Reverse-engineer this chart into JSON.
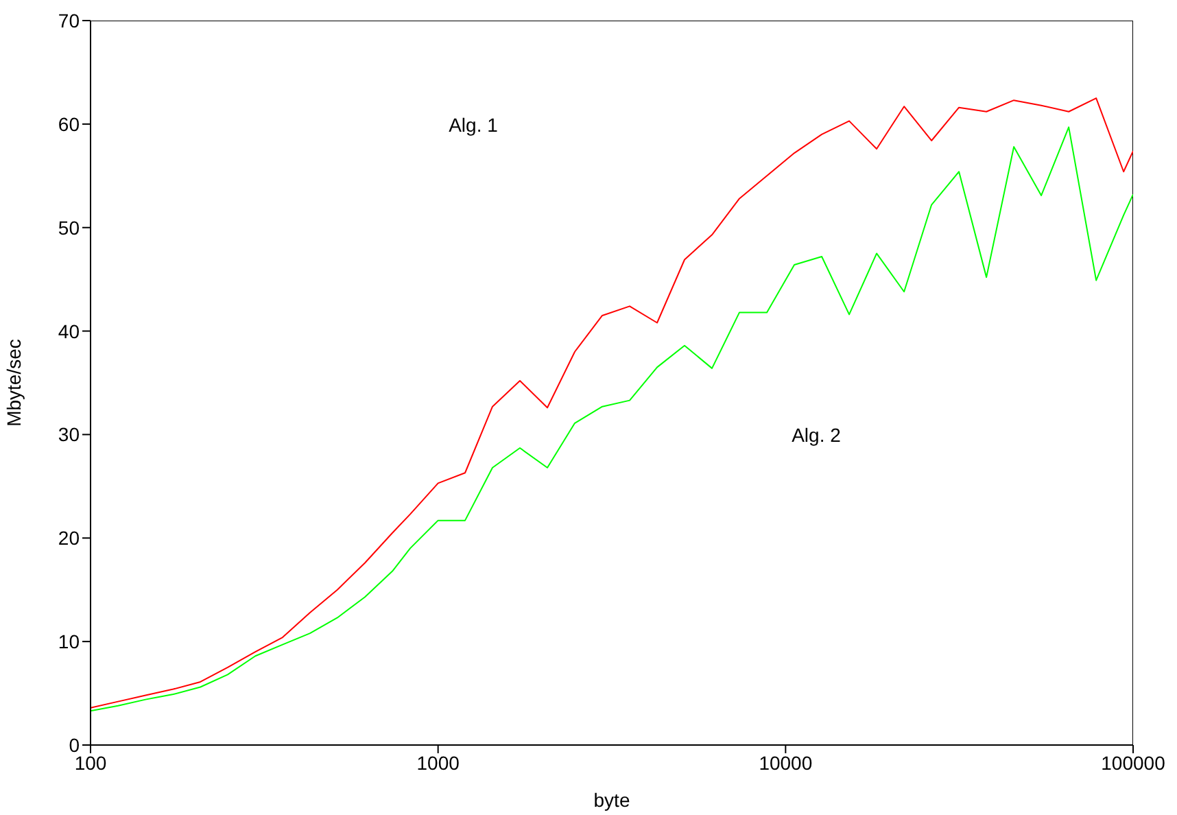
{
  "chart_data": {
    "type": "line",
    "xlabel": "byte",
    "ylabel": "Mbyte/sec",
    "log": "x",
    "grid": false,
    "legend": false,
    "marker": "none",
    "line_style": "solid",
    "annotations": [
      "Alg. 1",
      "Alg. 2"
    ],
    "x": [
      100,
      120,
      144,
      173,
      207,
      248,
      298,
      357,
      428,
      513,
      616,
      739,
      831,
      1000,
      1196,
      1434,
      1720,
      2063,
      2474,
      2968,
      3559,
      4269,
      5120,
      6141,
      7365,
      8834,
      10596,
      12709,
      15242,
      18282,
      21928,
      26300,
      31544,
      37834,
      45378,
      54426,
      65279,
      78295,
      93907,
      100000
    ],
    "xlim": [
      100,
      100000
    ],
    "xticks": [
      100,
      1000,
      10000,
      100000
    ],
    "ylim": [
      0,
      70
    ],
    "yticks": [
      0,
      10,
      20,
      30,
      40,
      50,
      60,
      70
    ],
    "series": [
      {
        "color": "#ff0000",
        "values": [
          3.6,
          4.2,
          4.8,
          5.4,
          6.1,
          7.5,
          9.0,
          10.4,
          12.8,
          15.0,
          17.6,
          20.5,
          22.3,
          25.3,
          26.3,
          32.7,
          35.2,
          32.6,
          38.0,
          41.5,
          42.4,
          40.8,
          46.9,
          49.3,
          52.8,
          55.0,
          57.2,
          59.0,
          60.3,
          57.6,
          61.7,
          58.4,
          61.6,
          61.2,
          62.3,
          61.8,
          61.2,
          62.5,
          55.4,
          57.4
        ]
      },
      {
        "color": "#00ff00",
        "values": [
          3.3,
          3.8,
          4.4,
          4.9,
          5.6,
          6.8,
          8.6,
          9.7,
          10.8,
          12.3,
          14.3,
          16.8,
          19.0,
          21.7,
          21.7,
          26.8,
          28.7,
          26.8,
          31.1,
          32.7,
          33.3,
          36.5,
          38.6,
          36.4,
          41.8,
          41.8,
          46.4,
          47.2,
          41.6,
          47.5,
          43.8,
          52.2,
          55.4,
          45.2,
          57.8,
          53.1,
          59.7,
          44.9,
          51.2,
          53.2
        ]
      }
    ]
  }
}
